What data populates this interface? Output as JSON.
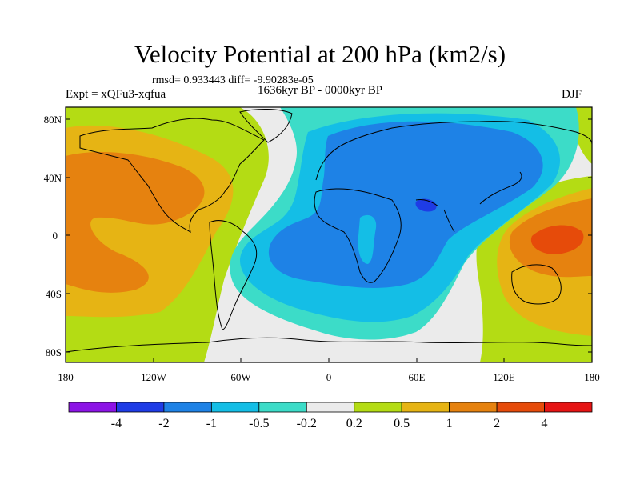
{
  "header": {
    "title": "Velocity Potential at 200 hPa (km2/s)",
    "stats": "rmsd= 0.933443  diff= -9.90283e-05",
    "experiment": "Expt = xQFu3-xqfua",
    "period": "1636kyr BP - 0000kyr BP",
    "season": "DJF"
  },
  "map": {
    "lat_ticks": [
      "80N",
      "40N",
      "0",
      "40S",
      "80S"
    ],
    "lon_ticks": [
      "180",
      "120W",
      "60W",
      "0",
      "60E",
      "120E",
      "180"
    ],
    "lat_range": [
      -90,
      90
    ],
    "lon_range": [
      -180,
      180
    ]
  },
  "colorbar": {
    "colors": [
      "#8c14e6",
      "#1e3ce6",
      "#1e82e6",
      "#14bee6",
      "#3cdcc8",
      "#ebebeb",
      "#b4dc14",
      "#e6b414",
      "#e6820f",
      "#e64b0a",
      "#e61414"
    ],
    "labels": [
      "-4",
      "-2",
      "-1",
      "-0.5",
      "-0.2",
      "0.2",
      "0.5",
      "1",
      "2",
      "4"
    ]
  }
}
